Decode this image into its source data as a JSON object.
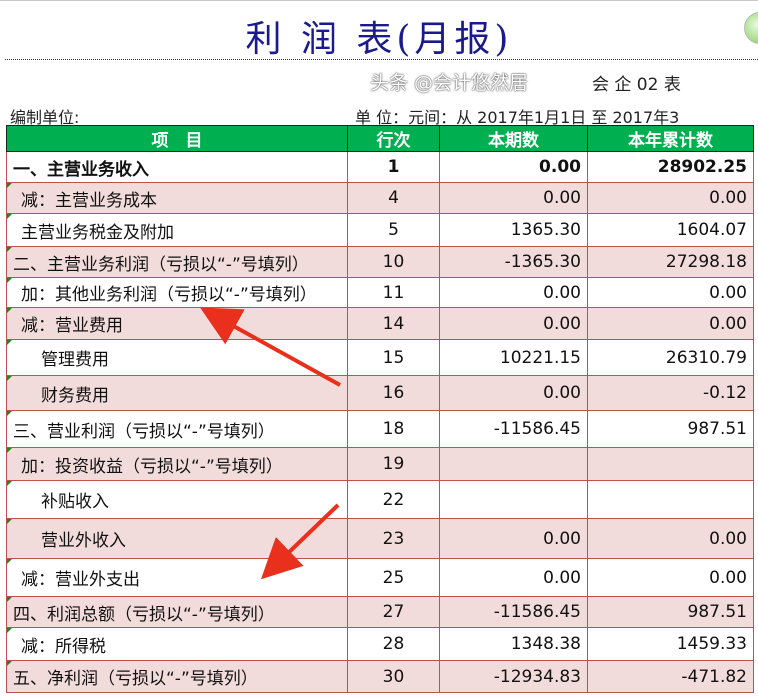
{
  "title": "利 润 表(月报)",
  "form_no": "会 企 02 表",
  "unit_left": "编制单位:",
  "unit_right": "单 位：元间：从  2017年1月1日  至  2017年3",
  "headers": [
    "项　目",
    "行次",
    "本期数",
    "本年累计数"
  ],
  "rows": [
    {
      "item": "一、主营业务收入",
      "line": "1",
      "current": "0.00",
      "ytd": "28902.25"
    },
    {
      "item": "减：主营业务成本",
      "line": "4",
      "current": "0.00",
      "ytd": "0.00"
    },
    {
      "item": "主营业务税金及附加",
      "line": "5",
      "current": "1365.30",
      "ytd": "1604.07"
    },
    {
      "item": "二、主营业务利润（亏损以“-”号填列）",
      "line": "10",
      "current": "-1365.30",
      "ytd": "27298.18"
    },
    {
      "item": "加：其他业务利润（亏损以“-”号填列）",
      "line": "11",
      "current": "0.00",
      "ytd": "0.00"
    },
    {
      "item": "减：营业费用",
      "line": "14",
      "current": "0.00",
      "ytd": "0.00"
    },
    {
      "item": "管理费用",
      "line": "15",
      "current": "10221.15",
      "ytd": "26310.79"
    },
    {
      "item": "财务费用",
      "line": "16",
      "current": "0.00",
      "ytd": "-0.12"
    },
    {
      "item": "三、营业利润（亏损以“-”号填列）",
      "line": "18",
      "current": "-11586.45",
      "ytd": "987.51"
    },
    {
      "item": "加：投资收益（亏损以“-”号填列）",
      "line": "19",
      "current": "",
      "ytd": ""
    },
    {
      "item": "补贴收入",
      "line": "22",
      "current": "",
      "ytd": ""
    },
    {
      "item": "营业外收入",
      "line": "23",
      "current": "0.00",
      "ytd": "0.00"
    },
    {
      "item": "减：营业外支出",
      "line": "25",
      "current": "0.00",
      "ytd": "0.00"
    },
    {
      "item": "四、利润总额（亏损以“-”号填列）",
      "line": "27",
      "current": "-11586.45",
      "ytd": "987.51"
    },
    {
      "item": "减：所得税",
      "line": "28",
      "current": "1348.38",
      "ytd": "1459.33"
    },
    {
      "item": "五、净利润（亏损以“-”号填列）",
      "line": "30",
      "current": "-12934.83",
      "ytd": "-471.82"
    }
  ],
  "watermark": "头条 @会计悠然居",
  "colors": {
    "header_bg": "#00b050",
    "row_pink": "#f2dcdb",
    "border": "#c0504d",
    "title": "#1a1a8c",
    "arrow": "#e8301c"
  }
}
